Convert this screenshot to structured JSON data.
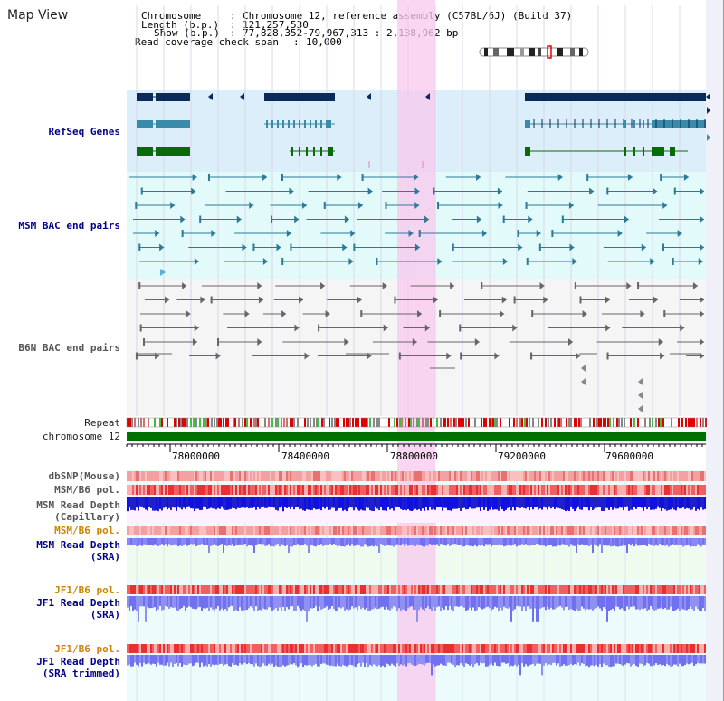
{
  "view_title": "Map View",
  "info": {
    "chromosome_key": "Chromosome",
    "chromosome_value": "Chromosome 12, reference assembly (C57BL/6J) (Build 37)",
    "length_key": "Length (b.p.)",
    "length_value": "121,257,530",
    "show_key": "Show (b.p.)",
    "show_value": "77,828,352-79,967,313 : 2,138,962 bp",
    "coverage_key": "Read coverage check span",
    "coverage_value": "10,000"
  },
  "tracks": {
    "refseq": "RefSeq Genes",
    "msm_bac": "MSM BAC end pairs",
    "b6n_bac": "B6N BAC end pairs",
    "repeat": "Repeat",
    "chromosome": "chromosome 12",
    "dbsnp": "dbSNP(Mouse)",
    "msm_b6_pol_1": "MSM/B6 pol.",
    "msm_depth_cap_1": "MSM Read Depth",
    "msm_depth_cap_2": "(Capillary)",
    "msm_b6_pol_2": "MSM/B6 pol.",
    "msm_depth_sra_1": "MSM Read Depth",
    "msm_depth_sra_2": "(SRA)",
    "jf1_b6_pol_1": "JF1/B6 pol.",
    "jf1_depth_sra_1": "JF1 Read Depth",
    "jf1_depth_sra_2": "(SRA)",
    "jf1_b6_pol_2": "JF1/B6 pol.",
    "jf1_depth_trim_1": "JF1 Read Depth",
    "jf1_depth_trim_2": "(SRA trimmed)"
  },
  "axis": {
    "ticks": [
      "78000000",
      "78400000",
      "78800000",
      "79200000",
      "79600000"
    ]
  },
  "colors": {
    "refseq_bg": "#dbeefa",
    "msm_bg": "#e3fafa",
    "b6n_bg": "#f5f5f5",
    "highlight": "#f8c8ee",
    "gene_dark": "#0a2a5a",
    "gene_mid": "#3a8aaa",
    "gene_green": "#0a6a0a",
    "msm_pair": "#2a7a9a",
    "b6n_pair": "#666666",
    "chromosome": "#007000",
    "depth_blue": "#1010e0",
    "depth_light": "#7070f0"
  }
}
